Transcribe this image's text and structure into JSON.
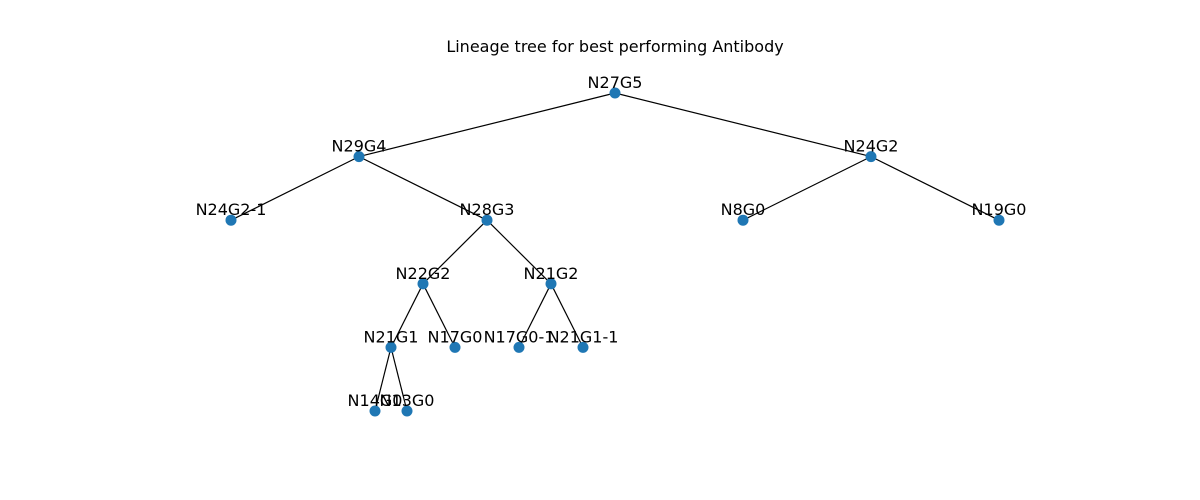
{
  "title": "Lineage tree for best performing Antibody",
  "colors": {
    "node": "#1f77b4",
    "edge": "#000000",
    "text": "#000000",
    "background": "#ffffff"
  },
  "tree": {
    "root": "N27G5",
    "nodes": [
      {
        "id": "N27G5",
        "label": "N27G5",
        "level": 0
      },
      {
        "id": "N29G4",
        "label": "N29G4",
        "level": 1
      },
      {
        "id": "N24G2",
        "label": "N24G2",
        "level": 1
      },
      {
        "id": "N24G2-1",
        "label": "N24G2-1",
        "level": 2
      },
      {
        "id": "N28G3",
        "label": "N28G3",
        "level": 2
      },
      {
        "id": "N8G0",
        "label": "N8G0",
        "level": 2
      },
      {
        "id": "N19G0",
        "label": "N19G0",
        "level": 2
      },
      {
        "id": "N22G2",
        "label": "N22G2",
        "level": 3
      },
      {
        "id": "N21G2",
        "label": "N21G2",
        "level": 3
      },
      {
        "id": "N21G1",
        "label": "N21G1",
        "level": 4
      },
      {
        "id": "N17G0",
        "label": "N17G0",
        "level": 4
      },
      {
        "id": "N17G0-1",
        "label": "N17G0-1",
        "level": 4
      },
      {
        "id": "N21G1-1",
        "label": "N21G1-1",
        "level": 4
      },
      {
        "id": "N14G0",
        "label": "N14G0",
        "level": 5
      },
      {
        "id": "N13G0",
        "label": "N13G0",
        "level": 5
      }
    ],
    "edges": [
      [
        "N27G5",
        "N29G4"
      ],
      [
        "N27G5",
        "N24G2"
      ],
      [
        "N29G4",
        "N24G2-1"
      ],
      [
        "N29G4",
        "N28G3"
      ],
      [
        "N24G2",
        "N8G0"
      ],
      [
        "N24G2",
        "N19G0"
      ],
      [
        "N28G3",
        "N22G2"
      ],
      [
        "N28G3",
        "N21G2"
      ],
      [
        "N22G2",
        "N21G1"
      ],
      [
        "N22G2",
        "N17G0"
      ],
      [
        "N21G2",
        "N17G0-1"
      ],
      [
        "N21G2",
        "N21G1-1"
      ],
      [
        "N21G1",
        "N14G0"
      ],
      [
        "N21G1",
        "N13G0"
      ]
    ]
  }
}
